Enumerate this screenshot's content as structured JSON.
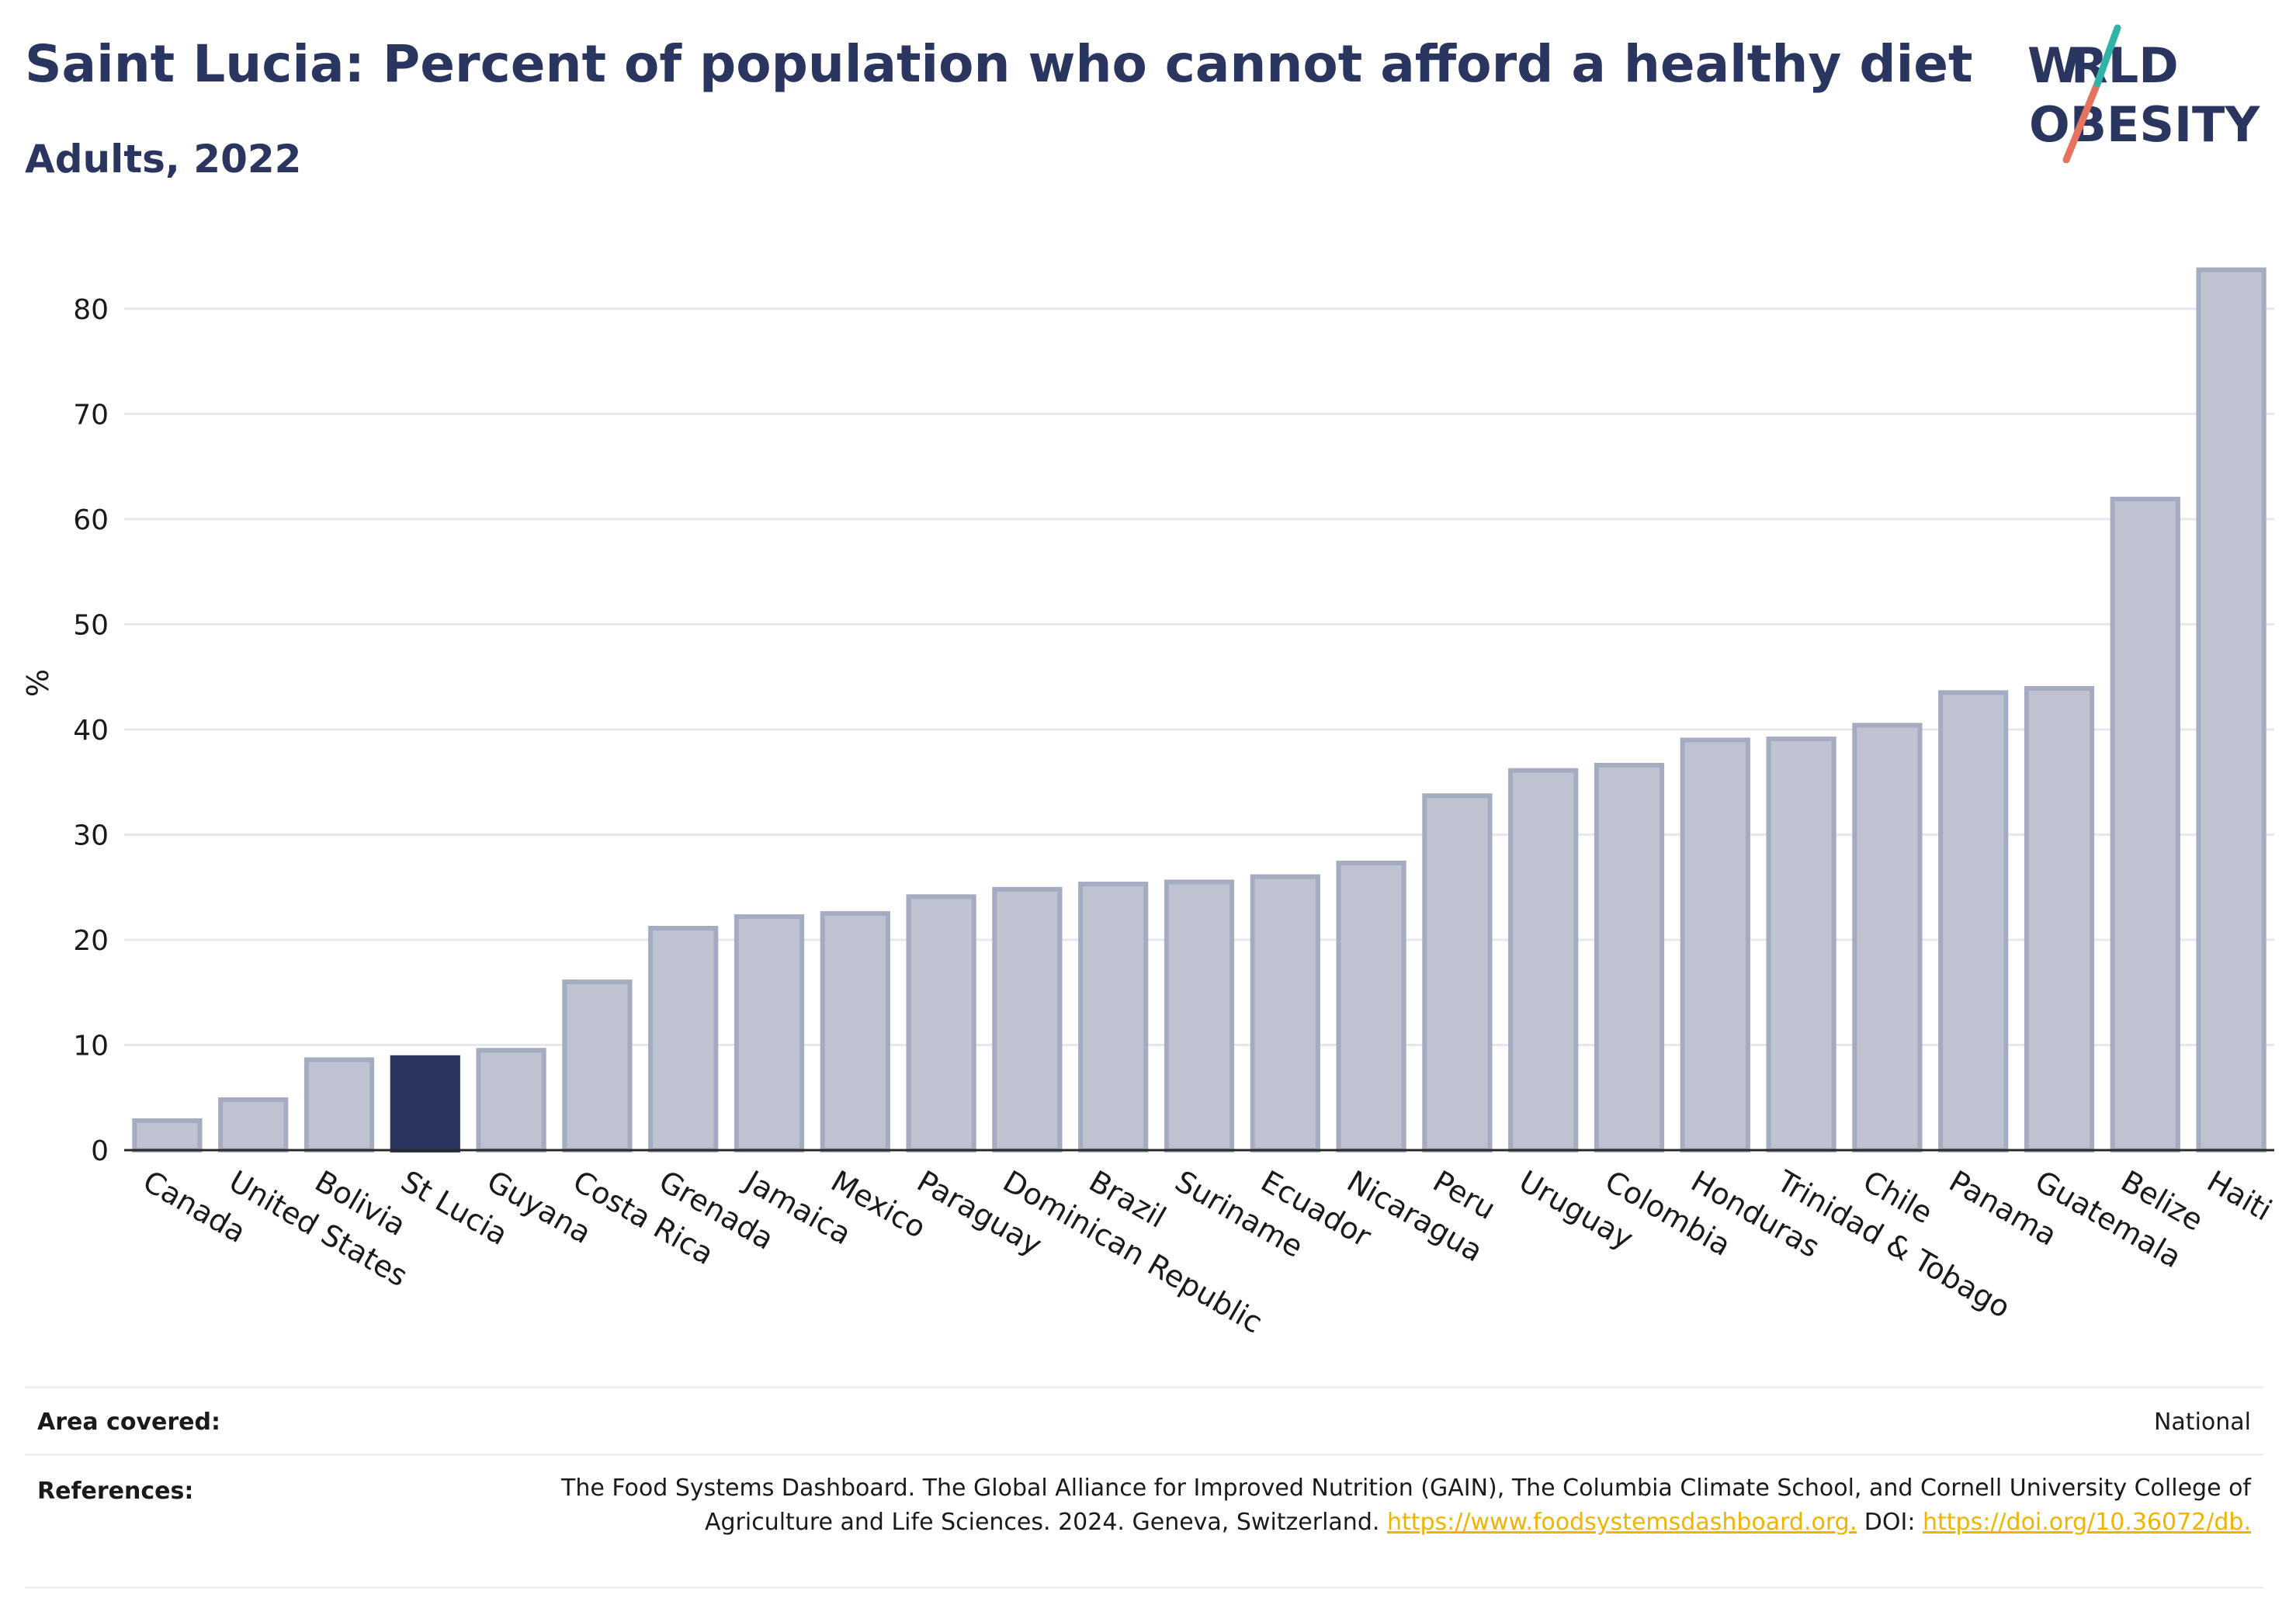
{
  "title": "Saint Lucia: Percent of population who cannot afford a healthy diet",
  "subtitle": "Adults, 2022",
  "logo": {
    "line1": "WORLD",
    "line2": "OBESITY"
  },
  "colors": {
    "bar": "#bfc3d1",
    "bar_stroke": "#a5abc0",
    "highlight": "#2b3660",
    "title": "#2b3660",
    "link": "#f0b400"
  },
  "chart_data": {
    "type": "bar",
    "categories": [
      "Canada",
      "United States",
      "Bolivia",
      "St Lucia",
      "Guyana",
      "Costa Rica",
      "Grenada",
      "Jamaica",
      "Mexico",
      "Paraguay",
      "Dominican Republic",
      "Brazil",
      "Suriname",
      "Ecuador",
      "Nicaragua",
      "Peru",
      "Uruguay",
      "Colombia",
      "Honduras",
      "Trinidad & Tobago",
      "Chile",
      "Panama",
      "Guatemala",
      "Belize",
      "Haiti"
    ],
    "values": [
      2.8,
      4.8,
      8.6,
      8.8,
      9.5,
      16.0,
      21.1,
      22.2,
      22.5,
      24.1,
      24.8,
      25.3,
      25.5,
      26.0,
      27.3,
      33.7,
      36.1,
      36.6,
      39.0,
      39.1,
      40.4,
      43.5,
      43.9,
      61.9,
      83.7
    ],
    "highlight": "St Lucia",
    "ylabel": "%",
    "xlabel": "",
    "ylim": [
      0,
      85
    ],
    "yticks": [
      0,
      10,
      20,
      30,
      40,
      50,
      60,
      70,
      80
    ],
    "grid": true
  },
  "footer": {
    "area_label": "Area covered:",
    "area_value": "National",
    "ref_label": "References:",
    "ref_text": "The Food Systems Dashboard. The Global Alliance for Improved Nutrition (GAIN), The Columbia Climate School, and Cornell University College of Agriculture and Life Sciences. 2024. Geneva, Switzerland. ",
    "ref_link1": "https://www.foodsystemsdashboard.org.",
    "ref_doi": " DOI: ",
    "ref_link2": "https://doi.org/10.36072/db."
  }
}
